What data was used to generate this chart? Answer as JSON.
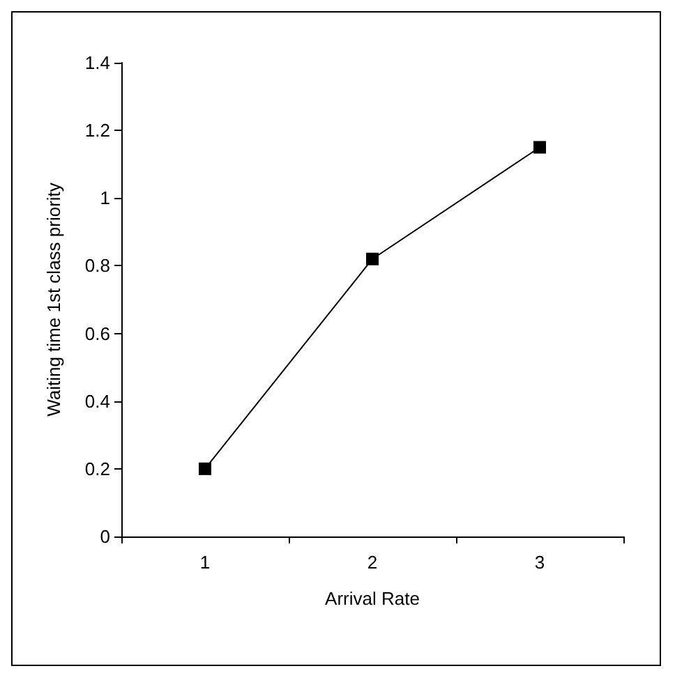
{
  "chart_data": {
    "type": "line",
    "xlabel": "Arrival Rate",
    "ylabel": "Waiting time 1st class priority",
    "categories": [
      "1",
      "2",
      "3"
    ],
    "series": [
      {
        "color": "#000000",
        "values": [
          0.2,
          0.82,
          1.15
        ]
      }
    ],
    "ylim": [
      0,
      1.4
    ],
    "yticks": [
      0,
      0.2,
      0.4,
      0.6,
      0.8,
      1,
      1.2,
      1.4
    ],
    "grid": false,
    "marker": "square",
    "line_style": "solid"
  }
}
